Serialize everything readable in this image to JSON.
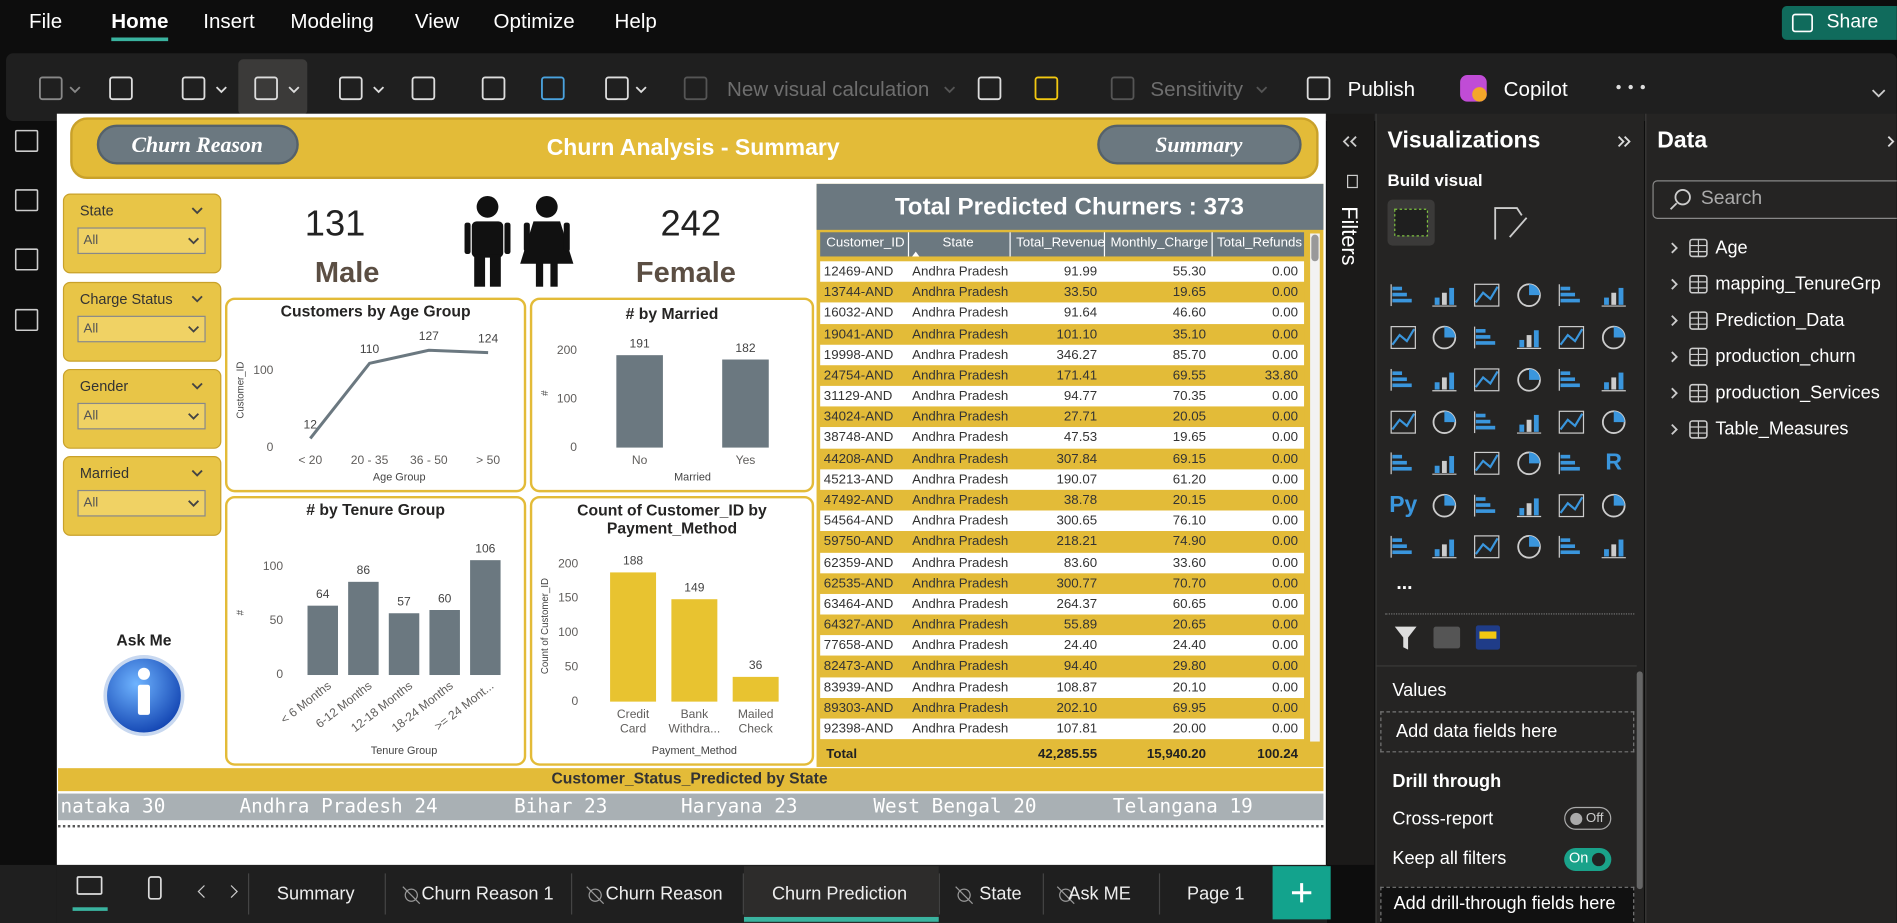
{
  "menu": {
    "items": [
      "File",
      "Home",
      "Insert",
      "Modeling",
      "View",
      "Optimize",
      "Help"
    ],
    "share": "Share"
  },
  "ribbon": {
    "new_visual_calculation": "New visual calculation",
    "sensitivity": "Sensitivity",
    "publish": "Publish",
    "copilot": "Copilot"
  },
  "report": {
    "header": {
      "left_button": "Churn Reason",
      "title": "Churn Analysis - Summary",
      "right_button": "Summary"
    },
    "slicers": [
      {
        "label": "State",
        "value": "All"
      },
      {
        "label": "Charge Status",
        "value": "All"
      },
      {
        "label": "Gender",
        "value": "All"
      },
      {
        "label": "Married",
        "value": "All"
      }
    ],
    "ask_me": "Ask Me",
    "cards": [
      {
        "value": 131,
        "label": "Male"
      },
      {
        "value": 242,
        "label": "Female"
      }
    ],
    "charts": [
      {
        "type": "line",
        "title": "Customers by Age Group",
        "y_label": "Customer_ID",
        "x_label": "Age Group",
        "categories": [
          "< 20",
          "20 - 35",
          "36 - 50",
          "> 50"
        ],
        "values": [
          12,
          110,
          127,
          124
        ],
        "color": "#6b7880",
        "ylim": [
          0,
          150
        ],
        "yticks": [
          0,
          100
        ]
      },
      {
        "type": "bar",
        "title": "# by Married",
        "y_label": "#",
        "x_label": "Married",
        "categories": [
          "No",
          "Yes"
        ],
        "values": [
          191,
          182
        ],
        "color": "#6b7880",
        "ylim": [
          0,
          225
        ],
        "yticks": [
          0,
          100,
          200
        ]
      },
      {
        "type": "bar",
        "title": "# by Tenure Group",
        "y_label": "#",
        "x_label": "Tenure Group",
        "categories": [
          "< 6 Months",
          "6-12 Months",
          "12-18 Months",
          "18-24 Months",
          ">= 24 Mont..."
        ],
        "values": [
          64,
          86,
          57,
          60,
          106
        ],
        "color": "#6b7880",
        "ylim": [
          0,
          115
        ],
        "yticks": [
          0,
          50,
          100
        ]
      },
      {
        "type": "bar",
        "title": "Count of Customer_ID by Payment_Method",
        "y_label": "Count of Customer_ID",
        "x_label": "Payment_Method",
        "categories": [
          "Credit Card",
          "Bank Withdra...",
          "Mailed Check"
        ],
        "values": [
          188,
          149,
          36
        ],
        "color": "#e8c330",
        "ylim": [
          0,
          220
        ],
        "yticks": [
          0,
          50,
          100,
          150,
          200
        ]
      }
    ],
    "table": {
      "title": "Total Predicted Churners : 373",
      "columns": [
        "Customer_ID",
        "State",
        "Total_Revenue",
        "Monthly_Charge",
        "Total_Refunds"
      ],
      "rows": [
        [
          "12469-AND",
          "Andhra Pradesh",
          "91.99",
          "55.30",
          "0.00"
        ],
        [
          "13744-AND",
          "Andhra Pradesh",
          "33.50",
          "19.65",
          "0.00"
        ],
        [
          "16032-AND",
          "Andhra Pradesh",
          "91.64",
          "46.60",
          "0.00"
        ],
        [
          "19041-AND",
          "Andhra Pradesh",
          "101.10",
          "35.10",
          "0.00"
        ],
        [
          "19998-AND",
          "Andhra Pradesh",
          "346.27",
          "85.70",
          "0.00"
        ],
        [
          "24754-AND",
          "Andhra Pradesh",
          "171.41",
          "69.55",
          "33.80"
        ],
        [
          "31129-AND",
          "Andhra Pradesh",
          "94.77",
          "70.35",
          "0.00"
        ],
        [
          "34024-AND",
          "Andhra Pradesh",
          "27.71",
          "20.05",
          "0.00"
        ],
        [
          "38748-AND",
          "Andhra Pradesh",
          "47.53",
          "19.65",
          "0.00"
        ],
        [
          "44208-AND",
          "Andhra Pradesh",
          "307.84",
          "69.15",
          "0.00"
        ],
        [
          "45213-AND",
          "Andhra Pradesh",
          "190.07",
          "61.20",
          "0.00"
        ],
        [
          "47492-AND",
          "Andhra Pradesh",
          "38.78",
          "20.15",
          "0.00"
        ],
        [
          "54564-AND",
          "Andhra Pradesh",
          "300.65",
          "76.10",
          "0.00"
        ],
        [
          "59750-AND",
          "Andhra Pradesh",
          "218.21",
          "74.90",
          "0.00"
        ],
        [
          "62359-AND",
          "Andhra Pradesh",
          "83.60",
          "33.60",
          "0.00"
        ],
        [
          "62535-AND",
          "Andhra Pradesh",
          "300.77",
          "70.70",
          "0.00"
        ],
        [
          "63464-AND",
          "Andhra Pradesh",
          "264.37",
          "60.65",
          "0.00"
        ],
        [
          "64327-AND",
          "Andhra Pradesh",
          "55.89",
          "20.65",
          "0.00"
        ],
        [
          "77658-AND",
          "Andhra Pradesh",
          "24.40",
          "24.40",
          "0.00"
        ],
        [
          "82473-AND",
          "Andhra Pradesh",
          "94.40",
          "29.80",
          "0.00"
        ],
        [
          "83939-AND",
          "Andhra Pradesh",
          "108.87",
          "20.10",
          "0.00"
        ],
        [
          "89303-AND",
          "Andhra Pradesh",
          "202.10",
          "69.95",
          "0.00"
        ],
        [
          "92398-AND",
          "Andhra Pradesh",
          "107.81",
          "20.00",
          "0.00"
        ]
      ],
      "total": {
        "label": "Total",
        "values": [
          "42,285.55",
          "15,940.20",
          "100.24"
        ]
      }
    },
    "ticker": {
      "title": "Customer_Status_Predicted by State",
      "items": [
        "nataka 30",
        "Andhra Pradesh 24",
        "Bihar 23",
        "Haryana 23",
        "West Bengal 20",
        "Telangana 19"
      ]
    }
  },
  "panes": {
    "filters": "Filters",
    "visualizations": {
      "title": "Visualizations",
      "build_visual": "Build visual",
      "icon_texts": [
        "R",
        "Py"
      ],
      "more": "...",
      "values": "Values",
      "values_placeholder": "Add data fields here",
      "drill_through": "Drill through",
      "cross_report": "Cross-report",
      "cross_report_state": "Off",
      "keep_all_filters": "Keep all filters",
      "keep_all_filters_state": "On",
      "drill_placeholder": "Add drill-through fields here"
    },
    "data": {
      "title": "Data",
      "search": "Search",
      "tables": [
        "Age",
        "mapping_TenureGrp",
        "Prediction_Data",
        "production_churn",
        "production_Services",
        "Table_Measures"
      ]
    }
  },
  "tabs": {
    "pages": [
      "Summary",
      "Churn Reason 1",
      "Churn Reason",
      "Churn Prediction",
      "State",
      "Ask ME",
      "Page 1"
    ],
    "active": 3
  }
}
